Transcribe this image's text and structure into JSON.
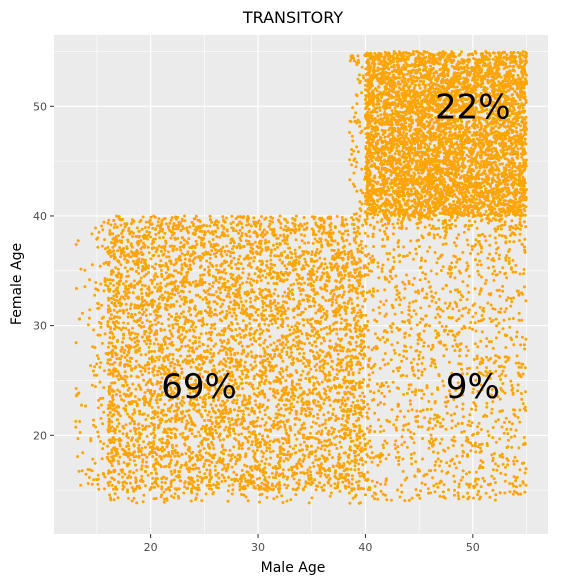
{
  "chart_data": {
    "type": "scatter",
    "title": "TRANSITORY",
    "xlabel": "Male Age",
    "ylabel": "Female Age",
    "xlim": [
      11,
      57
    ],
    "ylim": [
      11,
      56.5
    ],
    "x_ticks": [
      20,
      30,
      40,
      50
    ],
    "y_ticks": [
      20,
      30,
      40,
      50
    ],
    "grid": true,
    "legend": "none",
    "point_color": "#FFA500",
    "panel_background": "#EBEBEB",
    "grid_color": "#FFFFFF",
    "regions": [
      {
        "x_range": [
          16,
          40
        ],
        "y_range": [
          15,
          40
        ],
        "density": "high",
        "percent_label": "69%",
        "label_x": 24.5,
        "label_y": 24.5
      },
      {
        "x_range": [
          40,
          55
        ],
        "y_range": [
          40,
          55
        ],
        "density": "high",
        "percent_label": "22%",
        "label_x": 50,
        "label_y": 50
      },
      {
        "x_range": [
          40,
          55
        ],
        "y_range": [
          14,
          40
        ],
        "density": "low",
        "percent_label": "9%",
        "label_x": 50,
        "label_y": 24.5
      }
    ]
  }
}
